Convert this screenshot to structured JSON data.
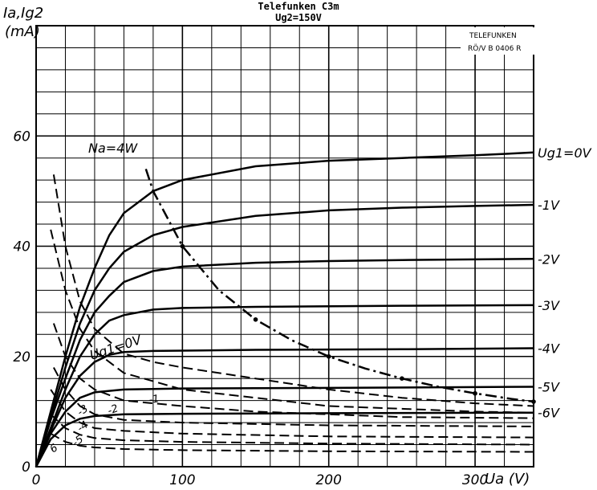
{
  "chart_data": {
    "type": "line",
    "title": "Telefunken C3m",
    "subtitle": "Ug2=150V",
    "xlabel": "Ua (V)",
    "ylabel": "Ia,Ig2",
    "yunit": "(mA)",
    "xlim": [
      0,
      340
    ],
    "ylim": [
      0,
      80
    ],
    "xticks": [
      "0",
      "100",
      "200",
      "300"
    ],
    "yticks": [
      "0",
      "20",
      "40",
      "60"
    ],
    "grid": true,
    "stamp": [
      "TELEFUNKEN",
      "RÖ/V  B 0406 R"
    ],
    "power_label": "Na=4W",
    "ia_curves": [
      {
        "label": "Ug1=0V",
        "points": [
          [
            0,
            0
          ],
          [
            10,
            10
          ],
          [
            20,
            20
          ],
          [
            30,
            29
          ],
          [
            40,
            36
          ],
          [
            50,
            42
          ],
          [
            60,
            46
          ],
          [
            80,
            50
          ],
          [
            100,
            52
          ],
          [
            150,
            54.5
          ],
          [
            200,
            55.5
          ],
          [
            250,
            56
          ],
          [
            300,
            56.5
          ],
          [
            340,
            57
          ]
        ]
      },
      {
        "label": "-1V",
        "points": [
          [
            0,
            0
          ],
          [
            10,
            9
          ],
          [
            20,
            18
          ],
          [
            30,
            26
          ],
          [
            40,
            32
          ],
          [
            50,
            36
          ],
          [
            60,
            39
          ],
          [
            80,
            42
          ],
          [
            100,
            43.5
          ],
          [
            150,
            45.5
          ],
          [
            200,
            46.5
          ],
          [
            250,
            47
          ],
          [
            300,
            47.3
          ],
          [
            340,
            47.5
          ]
        ]
      },
      {
        "label": "-2V",
        "points": [
          [
            0,
            0
          ],
          [
            10,
            8.5
          ],
          [
            20,
            16
          ],
          [
            30,
            23
          ],
          [
            40,
            28
          ],
          [
            50,
            31
          ],
          [
            60,
            33.5
          ],
          [
            80,
            35.5
          ],
          [
            100,
            36.3
          ],
          [
            150,
            37
          ],
          [
            200,
            37.3
          ],
          [
            250,
            37.5
          ],
          [
            340,
            37.7
          ]
        ]
      },
      {
        "label": "-3V",
        "points": [
          [
            0,
            0
          ],
          [
            10,
            7
          ],
          [
            20,
            14
          ],
          [
            30,
            20
          ],
          [
            40,
            24
          ],
          [
            50,
            26.5
          ],
          [
            60,
            27.5
          ],
          [
            80,
            28.5
          ],
          [
            100,
            28.8
          ],
          [
            150,
            29
          ],
          [
            250,
            29.2
          ],
          [
            340,
            29.3
          ]
        ]
      },
      {
        "label": "-4V",
        "points": [
          [
            0,
            0
          ],
          [
            10,
            6.5
          ],
          [
            20,
            12.5
          ],
          [
            30,
            16.5
          ],
          [
            40,
            19
          ],
          [
            50,
            20.3
          ],
          [
            60,
            20.8
          ],
          [
            80,
            21
          ],
          [
            150,
            21.2
          ],
          [
            250,
            21.3
          ],
          [
            340,
            21.5
          ]
        ]
      },
      {
        "label": "-5V",
        "points": [
          [
            0,
            0
          ],
          [
            10,
            6
          ],
          [
            20,
            10
          ],
          [
            30,
            12.5
          ],
          [
            40,
            13.5
          ],
          [
            60,
            14
          ],
          [
            100,
            14.2
          ],
          [
            200,
            14.3
          ],
          [
            340,
            14.5
          ]
        ]
      },
      {
        "label": "-6V",
        "points": [
          [
            0,
            0
          ],
          [
            10,
            5
          ],
          [
            20,
            7.5
          ],
          [
            30,
            8.7
          ],
          [
            40,
            9.2
          ],
          [
            60,
            9.5
          ],
          [
            100,
            9.6
          ],
          [
            200,
            9.7
          ],
          [
            340,
            9.8
          ]
        ]
      }
    ],
    "ig2_curves": [
      {
        "label": "Ug1=0V",
        "points": [
          [
            12,
            53
          ],
          [
            20,
            40
          ],
          [
            30,
            30
          ],
          [
            40,
            25
          ],
          [
            60,
            20.5
          ],
          [
            80,
            19
          ],
          [
            100,
            18
          ],
          [
            150,
            16
          ],
          [
            200,
            14
          ],
          [
            250,
            12.5
          ],
          [
            300,
            11.5
          ],
          [
            340,
            11
          ]
        ]
      },
      {
        "label": "-1",
        "points": [
          [
            10,
            43
          ],
          [
            20,
            32
          ],
          [
            30,
            25
          ],
          [
            40,
            21
          ],
          [
            60,
            17
          ],
          [
            80,
            15.5
          ],
          [
            100,
            14
          ],
          [
            150,
            12.5
          ],
          [
            200,
            11
          ],
          [
            250,
            10.5
          ],
          [
            300,
            10
          ],
          [
            340,
            9.8
          ]
        ]
      },
      {
        "label": "-2",
        "points": [
          [
            12,
            26
          ],
          [
            20,
            20
          ],
          [
            30,
            16
          ],
          [
            40,
            14
          ],
          [
            60,
            12
          ],
          [
            100,
            11
          ],
          [
            150,
            10
          ],
          [
            200,
            9.5
          ],
          [
            250,
            9
          ],
          [
            340,
            8.8
          ]
        ]
      },
      {
        "label": "-3",
        "points": [
          [
            12,
            18
          ],
          [
            20,
            14
          ],
          [
            30,
            11
          ],
          [
            40,
            9.5
          ],
          [
            60,
            8.5
          ],
          [
            100,
            8
          ],
          [
            200,
            7.5
          ],
          [
            340,
            7.3
          ]
        ]
      },
      {
        "label": "-4",
        "points": [
          [
            10,
            14
          ],
          [
            20,
            10
          ],
          [
            30,
            8
          ],
          [
            40,
            7
          ],
          [
            60,
            6.5
          ],
          [
            100,
            6
          ],
          [
            200,
            5.5
          ],
          [
            340,
            5.3
          ]
        ]
      },
      {
        "label": "-5",
        "points": [
          [
            10,
            9.5
          ],
          [
            20,
            7
          ],
          [
            30,
            5.8
          ],
          [
            40,
            5.2
          ],
          [
            60,
            4.8
          ],
          [
            100,
            4.5
          ],
          [
            200,
            4.2
          ],
          [
            340,
            4
          ]
        ]
      },
      {
        "label": "6",
        "points": [
          [
            10,
            6
          ],
          [
            20,
            4.5
          ],
          [
            30,
            3.8
          ],
          [
            40,
            3.5
          ],
          [
            60,
            3.2
          ],
          [
            100,
            3
          ],
          [
            200,
            2.8
          ],
          [
            340,
            2.7
          ]
        ]
      }
    ],
    "power_curve": [
      [
        75,
        54
      ],
      [
        80,
        50
      ],
      [
        100,
        40
      ],
      [
        125,
        32
      ],
      [
        150,
        26.7
      ],
      [
        175,
        22.9
      ],
      [
        200,
        20
      ],
      [
        225,
        17.8
      ],
      [
        250,
        16
      ],
      [
        275,
        14.5
      ],
      [
        300,
        13.3
      ],
      [
        325,
        12.3
      ],
      [
        340,
        11.8
      ]
    ]
  }
}
